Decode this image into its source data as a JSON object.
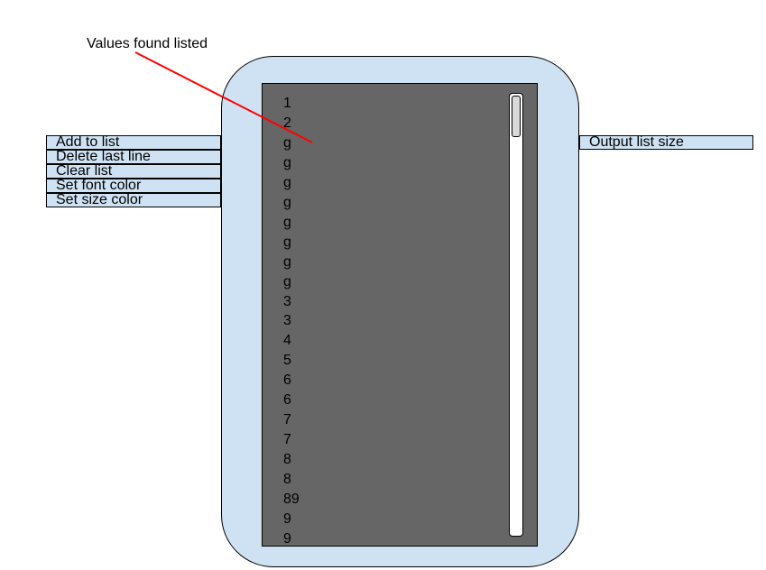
{
  "annotation": {
    "text": "Values found listed",
    "line_color": "#ff0000"
  },
  "inputs": [
    "Add to list",
    "Delete last line",
    "Clear list",
    "Set font color",
    "Set size color"
  ],
  "output": {
    "label": "Output list size"
  },
  "list": {
    "values": [
      "1",
      "2",
      "g",
      "g",
      "g",
      "g",
      "g",
      "g",
      "g",
      "g",
      "3",
      "3",
      "4",
      "5",
      "6",
      "6",
      "7",
      "7",
      "8",
      "8",
      "89",
      "9",
      "9"
    ]
  },
  "colors": {
    "body_fill": "#cfe2f3",
    "panel_fill": "#666666",
    "scroll_track": "#ffffff",
    "scroll_thumb": "#d9d9d9",
    "outline": "#000000"
  }
}
